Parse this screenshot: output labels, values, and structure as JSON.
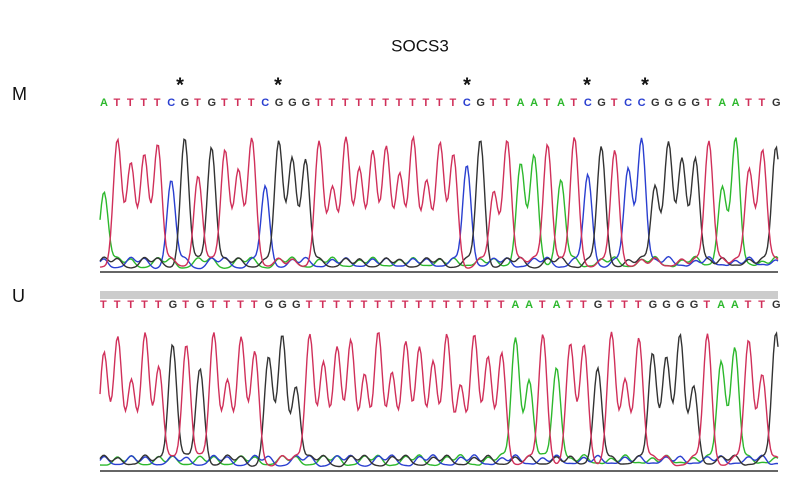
{
  "title": "SOCS3",
  "panels": [
    {
      "label": "M",
      "sequence": "ATTTTCGTGTTTCGGGTTTTTTTTTTTCGTTAATATCGTCCGGGGTAATTG",
      "marker": "*"
    },
    {
      "label": "U",
      "sequence": "TTTTTGTGTTTTGGGTTTTTTTTTTTTTTTAATATTGTTTGGGGTAATTG"
    }
  ]
}
